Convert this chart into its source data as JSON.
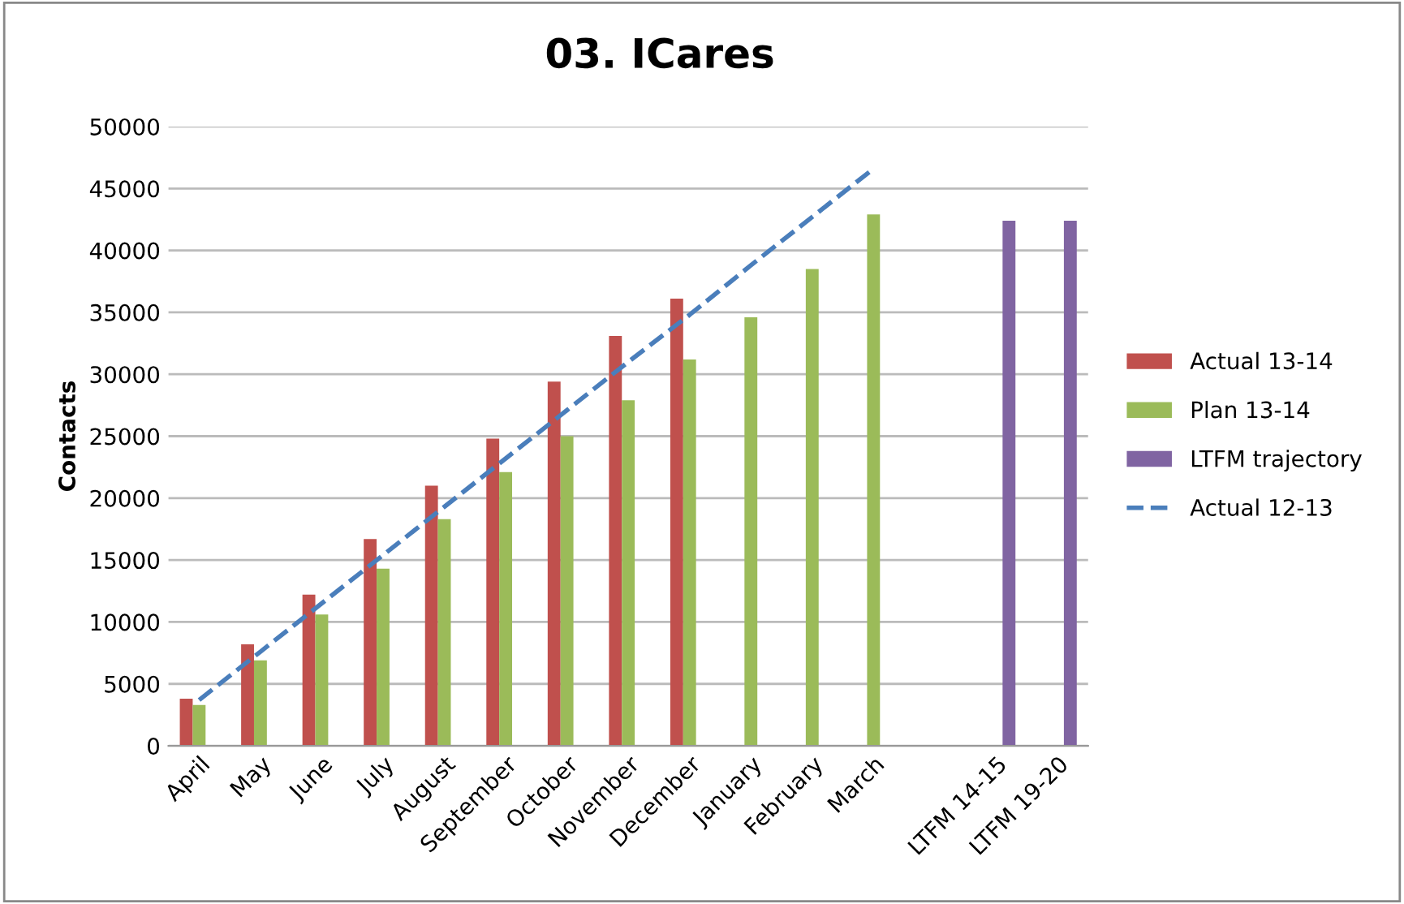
{
  "chart_data": {
    "type": "bar",
    "title": "03. ICares",
    "ylabel": "Contacts",
    "categories": [
      "April",
      "May",
      "June",
      "July",
      "August",
      "September",
      "October",
      "November",
      "December",
      "January",
      "February",
      "March",
      null,
      "LTFM 14-15",
      "LTFM 19-20"
    ],
    "series": [
      {
        "name": "Actual 13-14",
        "color": "#c0504d",
        "values": [
          3800,
          8200,
          12200,
          16700,
          21000,
          24800,
          29400,
          33100,
          36100,
          null,
          null,
          null,
          null,
          null,
          null
        ]
      },
      {
        "name": "Plan 13-14",
        "color": "#9bbb59",
        "values": [
          3300,
          6900,
          10600,
          14300,
          18300,
          22100,
          25000,
          27900,
          31200,
          34600,
          38500,
          42900,
          null,
          null,
          null
        ]
      },
      {
        "name": "LTFM trajectory",
        "color": "#8064a2",
        "values": [
          null,
          null,
          null,
          null,
          null,
          null,
          null,
          null,
          null,
          null,
          null,
          null,
          null,
          42400,
          42400
        ]
      },
      {
        "name": "Actual 12-13",
        "color": "#4a7ebb",
        "type": "line",
        "line_style": "dashed",
        "values": [
          3700,
          7600,
          11500,
          15400,
          19300,
          23200,
          27100,
          31000,
          34800,
          38800,
          42700,
          46600,
          null,
          null,
          null
        ]
      }
    ],
    "ylim": [
      0,
      50000
    ],
    "yticks": [
      0,
      5000,
      10000,
      15000,
      20000,
      25000,
      30000,
      35000,
      40000,
      45000,
      50000
    ],
    "grid": "y",
    "legend": "right"
  }
}
